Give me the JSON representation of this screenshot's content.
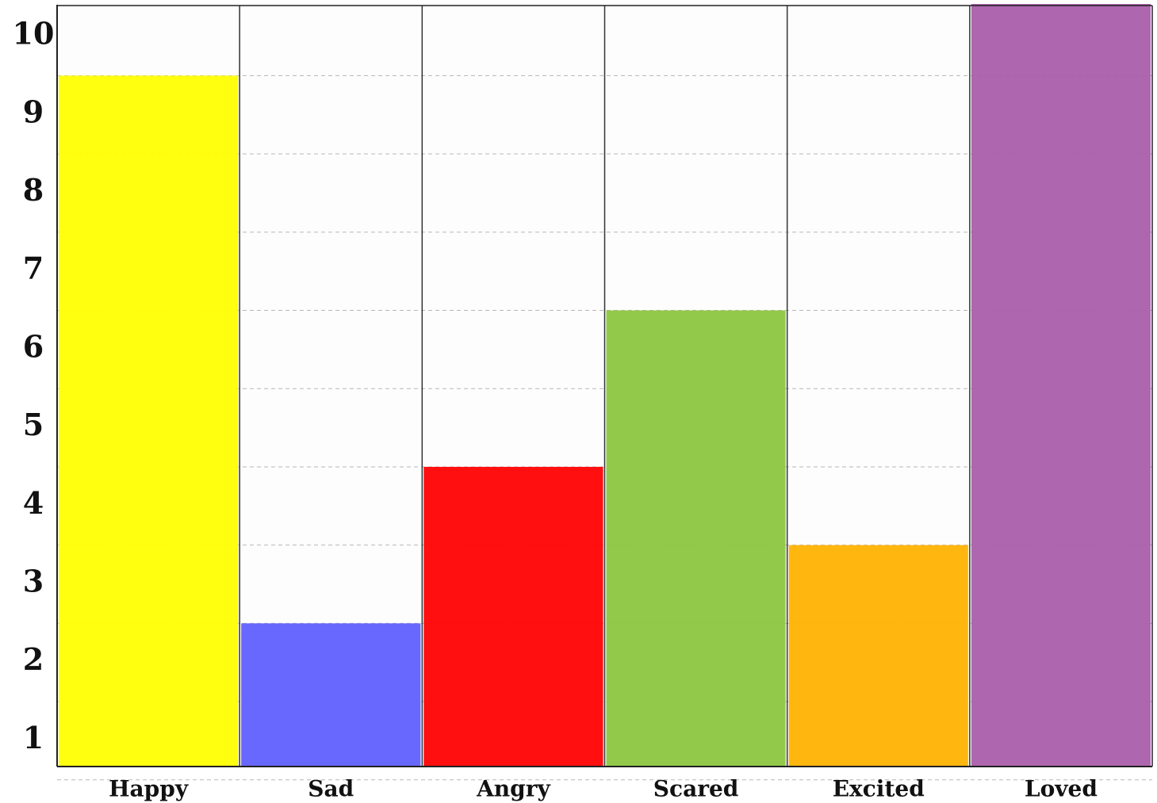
{
  "chart_data": {
    "type": "bar",
    "title": "",
    "xlabel": "",
    "ylabel": "",
    "categories": [
      "Happy",
      "Sad",
      "Angry",
      "Scared",
      "Excited",
      "Loved"
    ],
    "values": [
      9.5,
      2.5,
      4.5,
      6.5,
      3.5,
      10.5
    ],
    "colors": [
      "#ffff00",
      "#5f5fff",
      "#ff0000",
      "#8cc63f",
      "#ffb300",
      "#a95ea9"
    ],
    "yticks": [
      "1",
      "2",
      "3",
      "4",
      "5",
      "6",
      "7",
      "8",
      "9",
      "10"
    ],
    "ylim": [
      0.7,
      10.6
    ],
    "grid": true,
    "legend": "none"
  }
}
